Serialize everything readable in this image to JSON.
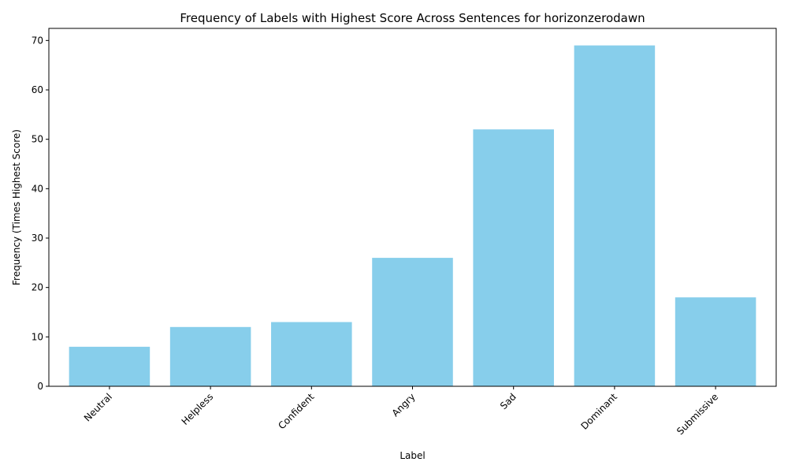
{
  "chart_data": {
    "type": "bar",
    "title": "Frequency of Labels with Highest Score Across Sentences for horizonzerodawn",
    "xlabel": "Label",
    "ylabel": "Frequency (Times Highest Score)",
    "categories": [
      "Neutral",
      "Helpless",
      "Confident",
      "Angry",
      "Sad",
      "Dominant",
      "Submissive"
    ],
    "values": [
      8,
      12,
      13,
      26,
      52,
      69,
      18
    ],
    "ylim": [
      0,
      72.45
    ],
    "yticks": [
      0,
      10,
      20,
      30,
      40,
      50,
      60,
      70
    ],
    "grid": false,
    "legend": "none",
    "bar_color": "#87CEEB",
    "axis_color": "#000000"
  }
}
